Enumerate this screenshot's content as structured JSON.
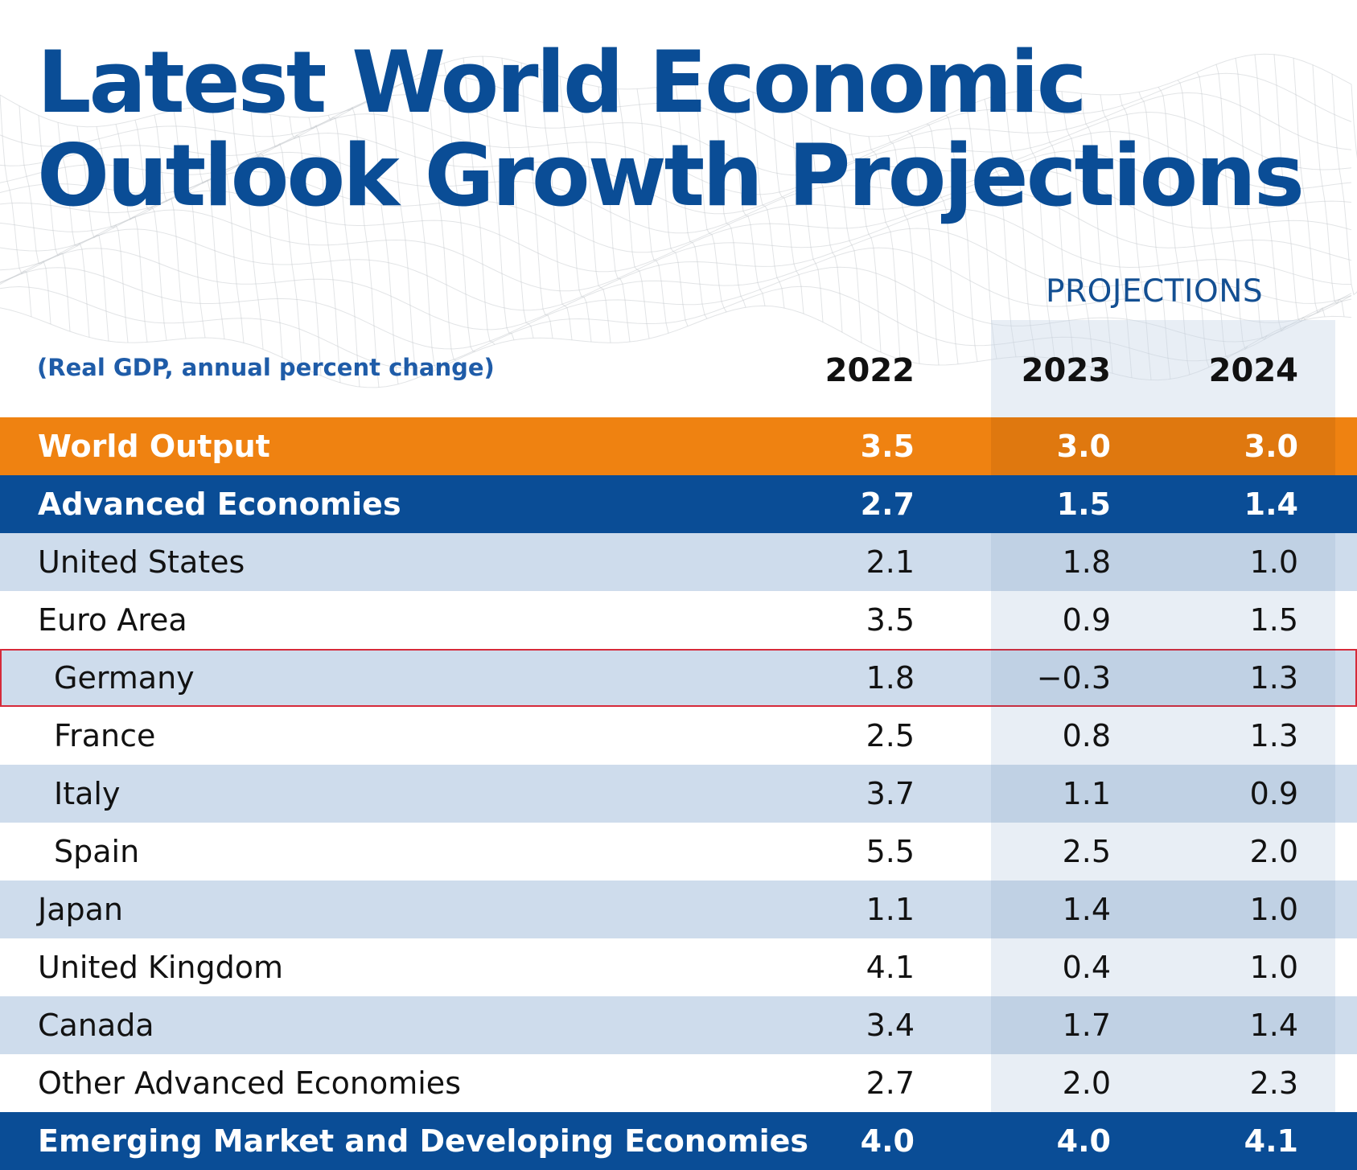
{
  "title": {
    "line1": "Latest World Economic",
    "line2": "Outlook Growth Projections"
  },
  "projections_label": "PROJECTIONS",
  "subtitle": "(Real GDP, annual percent change)",
  "colors": {
    "title": "#0a4d96",
    "orange": "#ef8211",
    "navy": "#0a4d96",
    "light_row": "#cedcec",
    "highlight_outline": "#d62a3a"
  },
  "chart_data": {
    "type": "table",
    "title": "Latest World Economic Outlook Growth Projections",
    "subtitle": "(Real GDP, annual percent change)",
    "projection_header": "PROJECTIONS",
    "columns": [
      "2022",
      "2023",
      "2024"
    ],
    "projected_columns": [
      "2023",
      "2024"
    ],
    "rows": [
      {
        "label": "World Output",
        "style": "orange",
        "bold": true,
        "level": 0,
        "values": [
          "3.5",
          "3.0",
          "3.0"
        ]
      },
      {
        "label": "Advanced Economies",
        "style": "navy",
        "bold": true,
        "level": 0,
        "values": [
          "2.7",
          "1.5",
          "1.4"
        ]
      },
      {
        "label": "United States",
        "style": "light",
        "bold": false,
        "level": 0,
        "values": [
          "2.1",
          "1.8",
          "1.0"
        ]
      },
      {
        "label": "Euro Area",
        "style": "white",
        "bold": false,
        "level": 0,
        "values": [
          "3.5",
          "0.9",
          "1.5"
        ]
      },
      {
        "label": "Germany",
        "style": "light",
        "bold": false,
        "level": 1,
        "highlighted": true,
        "values": [
          "1.8",
          "-0.3",
          "1.3"
        ]
      },
      {
        "label": "France",
        "style": "white",
        "bold": false,
        "level": 1,
        "values": [
          "2.5",
          "0.8",
          "1.3"
        ]
      },
      {
        "label": "Italy",
        "style": "light",
        "bold": false,
        "level": 1,
        "values": [
          "3.7",
          "1.1",
          "0.9"
        ]
      },
      {
        "label": "Spain",
        "style": "white",
        "bold": false,
        "level": 1,
        "values": [
          "5.5",
          "2.5",
          "2.0"
        ]
      },
      {
        "label": "Japan",
        "style": "light",
        "bold": false,
        "level": 0,
        "values": [
          "1.1",
          "1.4",
          "1.0"
        ]
      },
      {
        "label": "United Kingdom",
        "style": "white",
        "bold": false,
        "level": 0,
        "values": [
          "4.1",
          "0.4",
          "1.0"
        ]
      },
      {
        "label": "Canada",
        "style": "light",
        "bold": false,
        "level": 0,
        "values": [
          "3.4",
          "1.7",
          "1.4"
        ]
      },
      {
        "label": "Other Advanced Economies",
        "style": "white",
        "bold": false,
        "level": 0,
        "values": [
          "2.7",
          "2.0",
          "2.3"
        ]
      },
      {
        "label": "Emerging Market and Developing Economies",
        "style": "navy",
        "bold": true,
        "level": 0,
        "values": [
          "4.0",
          "4.0",
          "4.1"
        ]
      }
    ]
  }
}
